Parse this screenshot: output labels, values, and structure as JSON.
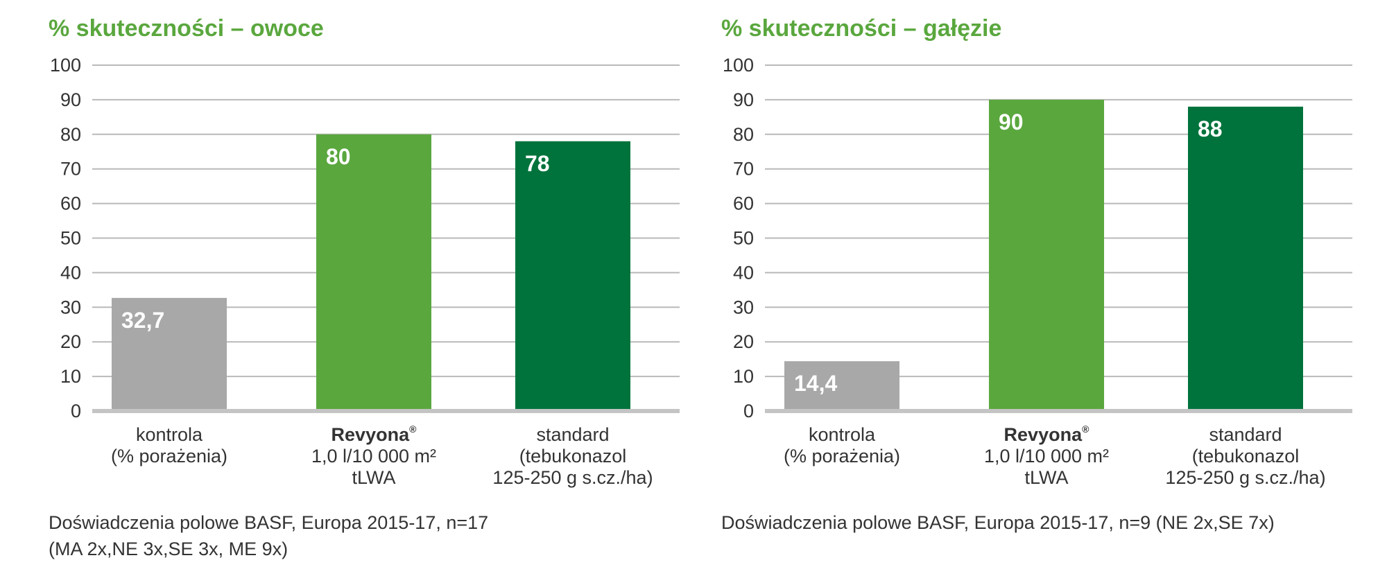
{
  "chart_data": [
    {
      "type": "bar",
      "title": "% skuteczności – owoce",
      "categories": [
        {
          "lines": [
            "kontrola",
            "(% porażenia)"
          ]
        },
        {
          "brand": "Revyona",
          "mark": "®",
          "lines": [
            "1,0 l/10 000 m²",
            "tLWA"
          ]
        },
        {
          "lines": [
            "standard",
            "(tebukonazol",
            "125-250 g s.cz./ha)"
          ]
        }
      ],
      "values": [
        32.7,
        80,
        78
      ],
      "value_labels": [
        "32,7",
        "80",
        "78"
      ],
      "bar_colors": [
        "#a8a8a8",
        "#5aa73e",
        "#00733c"
      ],
      "ylim": [
        0,
        100
      ],
      "yticks": [
        0,
        10,
        20,
        30,
        40,
        50,
        60,
        70,
        80,
        90,
        100
      ],
      "grid": true,
      "footnote": [
        "Doświadczenia polowe BASF, Europa 2015-17, n=17",
        "(MA 2x,NE 3x,SE 3x, ME 9x)"
      ]
    },
    {
      "type": "bar",
      "title": "% skuteczności – gałęzie",
      "categories": [
        {
          "lines": [
            "kontrola",
            "(% porażenia)"
          ]
        },
        {
          "brand": "Revyona",
          "mark": "®",
          "lines": [
            "1,0 l/10 000 m²",
            "tLWA"
          ]
        },
        {
          "lines": [
            "standard",
            "(tebukonazol",
            "125-250 g s.cz./ha)"
          ]
        }
      ],
      "values": [
        14.4,
        90,
        88
      ],
      "value_labels": [
        "14,4",
        "90",
        "88"
      ],
      "bar_colors": [
        "#a8a8a8",
        "#5aa73e",
        "#00733c"
      ],
      "ylim": [
        0,
        100
      ],
      "yticks": [
        0,
        10,
        20,
        30,
        40,
        50,
        60,
        70,
        80,
        90,
        100
      ],
      "grid": true,
      "footnote": [
        "Doświadczenia polowe BASF, Europa 2015-17, n=9 (NE 2x,SE 7x)"
      ]
    }
  ],
  "colors": {
    "title": "#5aa73e",
    "grid": "#b9b9b9",
    "baseline": "#c4c4c4",
    "text": "#333333"
  }
}
